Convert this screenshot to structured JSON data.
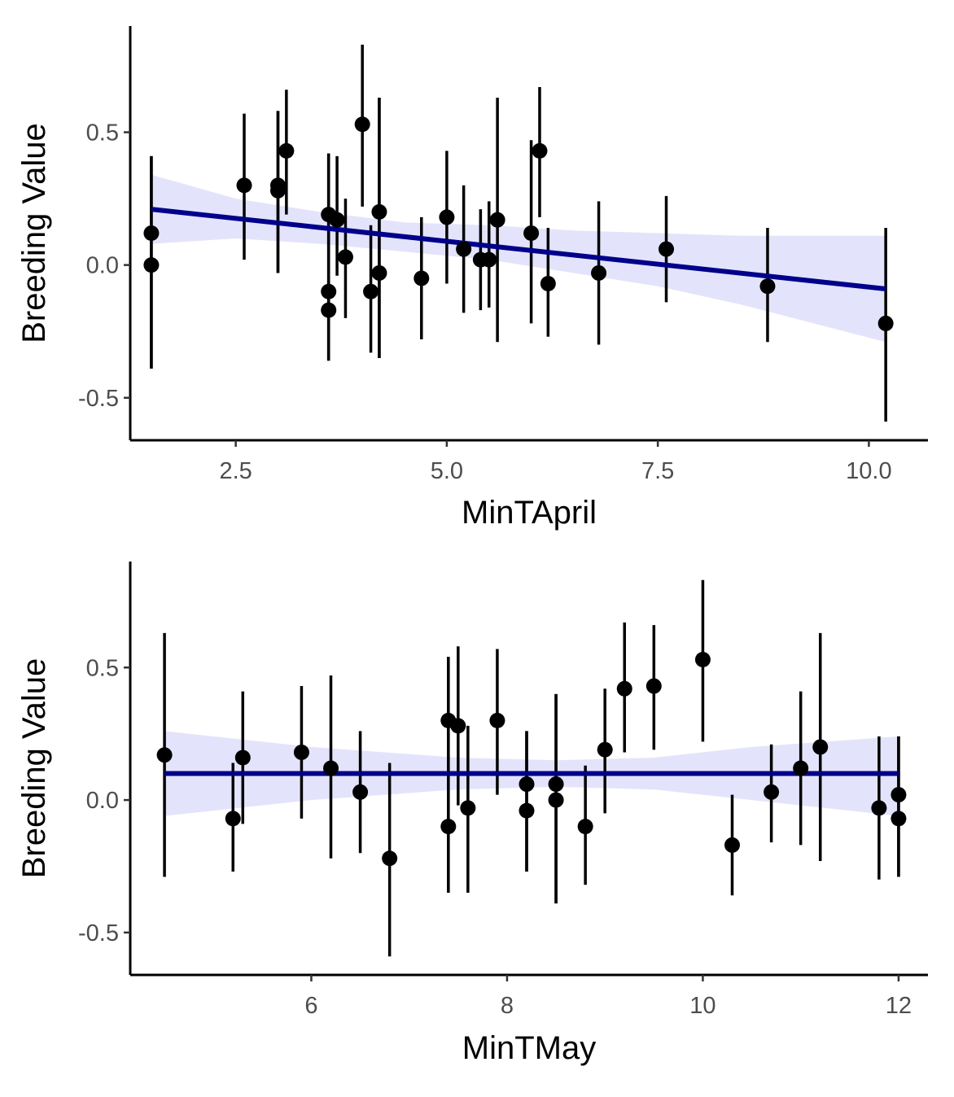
{
  "chart_data": [
    {
      "type": "scatter",
      "title": "",
      "xlabel": "MinTApril",
      "ylabel": "Breeding Value",
      "xlim": [
        1.25,
        10.7
      ],
      "ylim": [
        -0.66,
        0.9
      ],
      "xticks": [
        2.5,
        5.0,
        7.5,
        10.0
      ],
      "xtick_labels": [
        "2.5",
        "5.0",
        "7.5",
        "10.0"
      ],
      "yticks": [
        0.5,
        0.0,
        -0.5
      ],
      "ytick_labels": [
        "0.5",
        "0.0",
        "-0.5"
      ],
      "grid": false,
      "fit_line": {
        "x": [
          1.5,
          10.2
        ],
        "y": [
          0.21,
          -0.09
        ]
      },
      "ribbon": {
        "x": [
          1.5,
          2.5,
          3.5,
          4.5,
          5.5,
          6.5,
          7.5,
          8.5,
          10.2
        ],
        "lower": [
          0.08,
          0.1,
          0.08,
          0.05,
          0.02,
          -0.03,
          -0.08,
          -0.15,
          -0.29
        ],
        "upper": [
          0.34,
          0.25,
          0.2,
          0.16,
          0.15,
          0.13,
          0.12,
          0.11,
          0.11
        ]
      },
      "points": [
        {
          "x": 1.5,
          "y": 0.12,
          "lo": -0.39,
          "hi": 0.41
        },
        {
          "x": 1.5,
          "y": 0.0,
          "lo": -0.39,
          "hi": 0.41
        },
        {
          "x": 2.6,
          "y": 0.3,
          "lo": 0.02,
          "hi": 0.57
        },
        {
          "x": 3.0,
          "y": 0.3,
          "lo": -0.03,
          "hi": 0.58
        },
        {
          "x": 3.0,
          "y": 0.28,
          "lo": -0.03,
          "hi": 0.58
        },
        {
          "x": 3.1,
          "y": 0.43,
          "lo": 0.19,
          "hi": 0.66
        },
        {
          "x": 3.6,
          "y": 0.19,
          "lo": -0.36,
          "hi": 0.42
        },
        {
          "x": 3.6,
          "y": -0.1,
          "lo": -0.36,
          "hi": 0.42
        },
        {
          "x": 3.6,
          "y": -0.17,
          "lo": -0.36,
          "hi": 0.42
        },
        {
          "x": 3.7,
          "y": 0.17,
          "lo": -0.04,
          "hi": 0.41
        },
        {
          "x": 3.8,
          "y": 0.03,
          "lo": -0.2,
          "hi": 0.25
        },
        {
          "x": 4.0,
          "y": 0.53,
          "lo": 0.22,
          "hi": 0.83
        },
        {
          "x": 4.1,
          "y": -0.1,
          "lo": -0.33,
          "hi": 0.15
        },
        {
          "x": 4.2,
          "y": 0.2,
          "lo": -0.35,
          "hi": 0.63
        },
        {
          "x": 4.2,
          "y": -0.03,
          "lo": -0.35,
          "hi": 0.63
        },
        {
          "x": 4.7,
          "y": -0.05,
          "lo": -0.28,
          "hi": 0.18
        },
        {
          "x": 5.0,
          "y": 0.18,
          "lo": -0.07,
          "hi": 0.43
        },
        {
          "x": 5.2,
          "y": 0.06,
          "lo": -0.18,
          "hi": 0.3
        },
        {
          "x": 5.4,
          "y": 0.02,
          "lo": -0.17,
          "hi": 0.21
        },
        {
          "x": 5.5,
          "y": 0.02,
          "lo": -0.16,
          "hi": 0.24
        },
        {
          "x": 5.6,
          "y": 0.17,
          "lo": -0.29,
          "hi": 0.63
        },
        {
          "x": 6.0,
          "y": 0.12,
          "lo": -0.22,
          "hi": 0.47
        },
        {
          "x": 6.1,
          "y": 0.43,
          "lo": 0.18,
          "hi": 0.67
        },
        {
          "x": 6.2,
          "y": -0.07,
          "lo": -0.27,
          "hi": 0.14
        },
        {
          "x": 6.8,
          "y": -0.03,
          "lo": -0.3,
          "hi": 0.24
        },
        {
          "x": 7.6,
          "y": 0.06,
          "lo": -0.14,
          "hi": 0.26
        },
        {
          "x": 8.8,
          "y": -0.08,
          "lo": -0.29,
          "hi": 0.14
        },
        {
          "x": 10.2,
          "y": -0.22,
          "lo": -0.59,
          "hi": 0.14
        }
      ]
    },
    {
      "type": "scatter",
      "title": "",
      "xlabel": "MinTMay",
      "ylabel": "Breeding Value",
      "xlim": [
        4.15,
        12.3
      ],
      "ylim": [
        -0.66,
        0.9
      ],
      "xticks": [
        6,
        8,
        10,
        12
      ],
      "xtick_labels": [
        "6",
        "8",
        "10",
        "12"
      ],
      "yticks": [
        0.5,
        0.0,
        -0.5
      ],
      "ytick_labels": [
        "0.5",
        "0.0",
        "-0.5"
      ],
      "grid": false,
      "fit_line": {
        "x": [
          4.5,
          12.0
        ],
        "y": [
          0.1,
          0.1
        ]
      },
      "ribbon": {
        "x": [
          4.5,
          6.0,
          7.5,
          8.5,
          9.5,
          10.5,
          12.0
        ],
        "lower": [
          -0.06,
          0.0,
          0.04,
          0.05,
          0.04,
          0.0,
          -0.06
        ],
        "upper": [
          0.26,
          0.2,
          0.16,
          0.15,
          0.16,
          0.2,
          0.24
        ]
      },
      "points": [
        {
          "x": 4.5,
          "y": 0.17,
          "lo": -0.29,
          "hi": 0.63
        },
        {
          "x": 5.2,
          "y": -0.07,
          "lo": -0.27,
          "hi": 0.14
        },
        {
          "x": 5.3,
          "y": 0.16,
          "lo": -0.09,
          "hi": 0.41
        },
        {
          "x": 5.9,
          "y": 0.18,
          "lo": -0.07,
          "hi": 0.43
        },
        {
          "x": 6.2,
          "y": 0.12,
          "lo": -0.22,
          "hi": 0.47
        },
        {
          "x": 6.5,
          "y": 0.03,
          "lo": -0.2,
          "hi": 0.26
        },
        {
          "x": 6.8,
          "y": -0.22,
          "lo": -0.59,
          "hi": 0.14
        },
        {
          "x": 7.4,
          "y": 0.3,
          "lo": -0.35,
          "hi": 0.54
        },
        {
          "x": 7.4,
          "y": -0.1,
          "lo": -0.35,
          "hi": 0.54
        },
        {
          "x": 7.5,
          "y": 0.28,
          "lo": -0.02,
          "hi": 0.58
        },
        {
          "x": 7.6,
          "y": -0.03,
          "lo": -0.35,
          "hi": 0.28
        },
        {
          "x": 7.9,
          "y": 0.3,
          "lo": 0.02,
          "hi": 0.57
        },
        {
          "x": 8.2,
          "y": 0.06,
          "lo": -0.27,
          "hi": 0.26
        },
        {
          "x": 8.2,
          "y": -0.04,
          "lo": -0.27,
          "hi": 0.26
        },
        {
          "x": 8.5,
          "y": 0.06,
          "lo": -0.39,
          "hi": 0.4
        },
        {
          "x": 8.5,
          "y": 0.0,
          "lo": -0.39,
          "hi": 0.4
        },
        {
          "x": 8.8,
          "y": -0.1,
          "lo": -0.32,
          "hi": 0.13
        },
        {
          "x": 9.0,
          "y": 0.19,
          "lo": -0.05,
          "hi": 0.42
        },
        {
          "x": 9.2,
          "y": 0.42,
          "lo": 0.18,
          "hi": 0.67
        },
        {
          "x": 9.5,
          "y": 0.43,
          "lo": 0.19,
          "hi": 0.66
        },
        {
          "x": 10.0,
          "y": 0.53,
          "lo": 0.22,
          "hi": 0.83
        },
        {
          "x": 10.3,
          "y": -0.17,
          "lo": -0.36,
          "hi": 0.02
        },
        {
          "x": 10.7,
          "y": 0.03,
          "lo": -0.16,
          "hi": 0.21
        },
        {
          "x": 11.0,
          "y": 0.12,
          "lo": -0.17,
          "hi": 0.41
        },
        {
          "x": 11.2,
          "y": 0.2,
          "lo": -0.23,
          "hi": 0.63
        },
        {
          "x": 11.8,
          "y": -0.03,
          "lo": -0.3,
          "hi": 0.24
        },
        {
          "x": 12.0,
          "y": 0.02,
          "lo": -0.29,
          "hi": 0.24
        },
        {
          "x": 12.0,
          "y": -0.07,
          "lo": -0.29,
          "hi": 0.24
        }
      ]
    }
  ]
}
